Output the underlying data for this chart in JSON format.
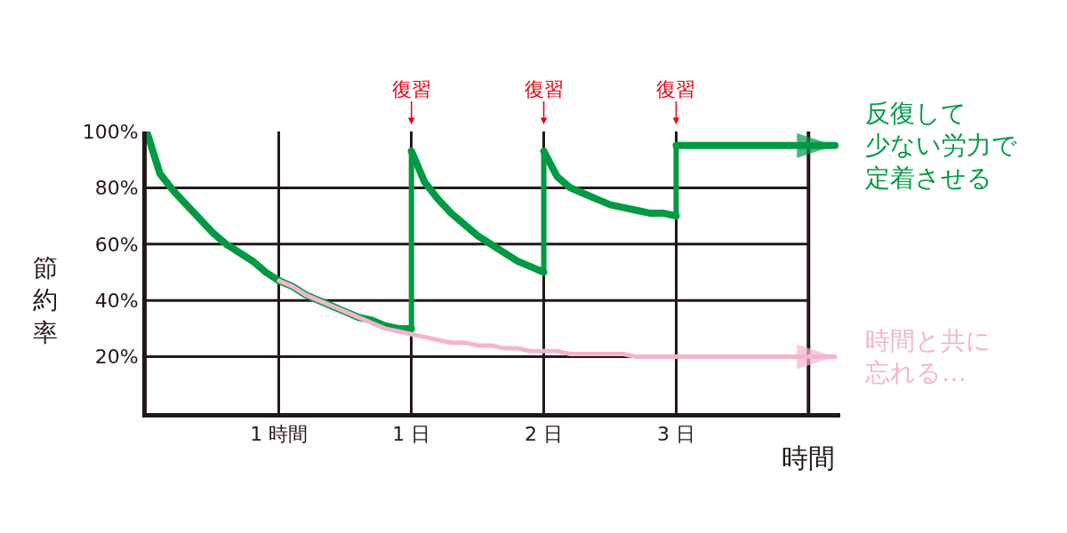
{
  "chart_data": {
    "type": "line",
    "categories": [
      null,
      null,
      null,
      null,
      null,
      null,
      null,
      null,
      null,
      null,
      "1 時間",
      null,
      null,
      null,
      null,
      null,
      null,
      null,
      null,
      null,
      "1 日",
      null,
      null,
      null,
      null,
      null,
      null,
      null,
      null,
      null,
      "2 日",
      null,
      null,
      null,
      null,
      null,
      null,
      null,
      null,
      null,
      "3 日",
      null,
      null,
      null,
      null,
      null,
      null,
      null,
      null,
      null,
      null,
      null,
      null
    ],
    "series": [
      {
        "name": "反復して少ない労力で定着させる",
        "color": "#009a44",
        "values": [
          100,
          85,
          79,
          74,
          69,
          64,
          60,
          57,
          54,
          50,
          47,
          45,
          42,
          40,
          38,
          36,
          34,
          33,
          31,
          30,
          30,
          null,
          null,
          null,
          null,
          null,
          null,
          null,
          null,
          null,
          null,
          null,
          null,
          null,
          null,
          null,
          null,
          null,
          null,
          null,
          null,
          null,
          null,
          null,
          null,
          null,
          null,
          null,
          null,
          null,
          null,
          null,
          null
        ]
      },
      {
        "color": "#009a44",
        "values": [
          null,
          null,
          null,
          null,
          null,
          null,
          null,
          null,
          null,
          null,
          null,
          null,
          null,
          null,
          null,
          null,
          null,
          null,
          null,
          null,
          93,
          82,
          76,
          71,
          67,
          63,
          60,
          57,
          54,
          52,
          50,
          null,
          null,
          null,
          null,
          null,
          null,
          null,
          null,
          null,
          null,
          null,
          null,
          null,
          null,
          null,
          null,
          null,
          null,
          null,
          null,
          null,
          null
        ]
      },
      {
        "color": "#009a44",
        "values": [
          null,
          null,
          null,
          null,
          null,
          null,
          null,
          null,
          null,
          null,
          null,
          null,
          null,
          null,
          null,
          null,
          null,
          null,
          null,
          null,
          null,
          null,
          null,
          null,
          null,
          null,
          null,
          null,
          null,
          null,
          93,
          84,
          80,
          78,
          76,
          74,
          73,
          72,
          71,
          71,
          70,
          null,
          null,
          null,
          null,
          null,
          null,
          null,
          null,
          null,
          null,
          null,
          null
        ]
      },
      {
        "color": "#009a44",
        "values": [
          null,
          null,
          null,
          null,
          null,
          null,
          null,
          null,
          null,
          null,
          null,
          null,
          null,
          null,
          null,
          null,
          null,
          null,
          null,
          null,
          null,
          null,
          null,
          null,
          null,
          null,
          null,
          null,
          null,
          null,
          null,
          null,
          null,
          null,
          null,
          null,
          null,
          null,
          null,
          null,
          95,
          95,
          95,
          95,
          95,
          95,
          95,
          95,
          95,
          95,
          95,
          95,
          95
        ]
      },
      {
        "name": "時間と共に忘れる…",
        "color": "#f4b4d0",
        "values": [
          null,
          null,
          null,
          null,
          null,
          null,
          null,
          null,
          null,
          null,
          47,
          45,
          42,
          40,
          38,
          36,
          34,
          32,
          30,
          29,
          28,
          27,
          26,
          25,
          25,
          24,
          24,
          23,
          23,
          22,
          22,
          22,
          21,
          21,
          21,
          21,
          21,
          20,
          20,
          20,
          20,
          20,
          20,
          20,
          20,
          20,
          20,
          20,
          20,
          20,
          20,
          20,
          20
        ]
      }
    ],
    "ylim": [
      0,
      100
    ],
    "yticks": [
      {
        "value": 20,
        "label": "20%"
      },
      {
        "value": 40,
        "label": "40%"
      },
      {
        "value": 60,
        "label": "60%"
      },
      {
        "value": 80,
        "label": "80%"
      },
      {
        "value": 100,
        "label": "100%"
      }
    ],
    "xlabel": "時間",
    "ylabel": "節約率",
    "annotations": [
      "復習",
      "復習",
      "復習"
    ],
    "grid": true,
    "legend": false,
    "line_style": "solid"
  }
}
